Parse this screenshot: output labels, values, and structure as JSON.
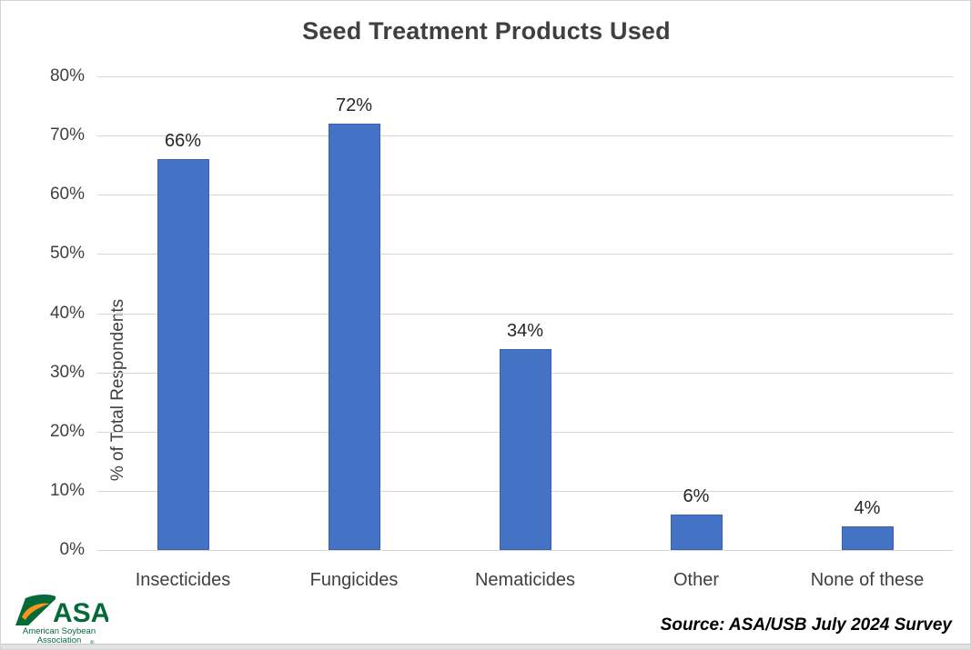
{
  "chart_data": {
    "type": "bar",
    "title": "Seed Treatment Products Used",
    "categories": [
      "Insecticides",
      "Fungicides",
      "Nematicides",
      "Other",
      "None of these"
    ],
    "values": [
      66,
      72,
      34,
      6,
      4
    ],
    "data_labels": [
      "66%",
      "72%",
      "34%",
      "6%",
      "4%"
    ],
    "xlabel": "",
    "ylabel": "% of Total Respondents",
    "ylim": [
      0,
      80
    ],
    "ytick_labels": [
      "0%",
      "10%",
      "20%",
      "30%",
      "40%",
      "50%",
      "60%",
      "70%",
      "80%"
    ],
    "grid": "horizontal",
    "legend_position": "none",
    "bar_color": "#4472c4",
    "bar_edge_color": "#3862ae",
    "gridline_color": "#d6d6d6",
    "title_color": "#3f3f3f",
    "label_color": "#262626"
  },
  "footer": {
    "source": "Source: ASA/USB July 2024 Survey",
    "logo": {
      "acronym": "ASA",
      "line1": "American Soybean",
      "line2": "Association",
      "registered": "®",
      "green": "#046a38",
      "orange": "#f7941e"
    }
  }
}
